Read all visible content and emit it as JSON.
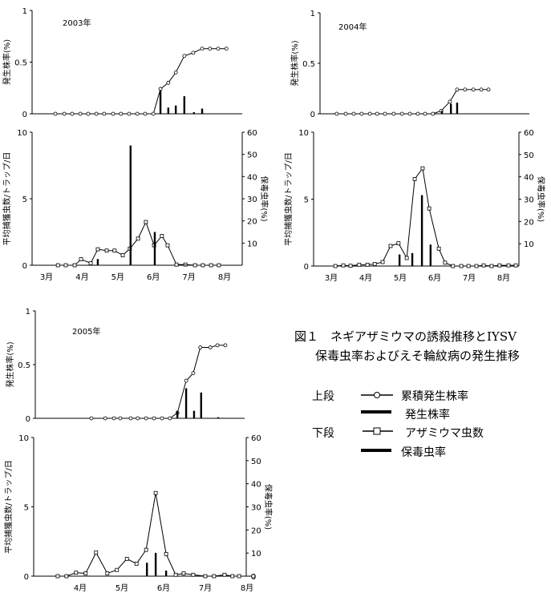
{
  "caption": {
    "line1": "図１　ネギアザミウマの誘殺推移とIYSV",
    "line2": "保毒虫率およびえそ輪紋病の発生推移"
  },
  "legend": {
    "upper_label": "上段",
    "lower_label": "下段",
    "items": [
      "累積発生株率",
      "発生株率",
      "アザミウマ虫数",
      "保毒虫率"
    ]
  },
  "chart_data": [
    {
      "type": "line",
      "year_label": "2003年",
      "ylabel": "発生株率(%)",
      "ylim": [
        0,
        1
      ],
      "yticks": [
        "0",
        "0.5",
        "1"
      ],
      "series": [
        {
          "name": "累積発生株率",
          "kind": "line-circle",
          "x": [
            3.75,
            4.0,
            4.22,
            4.45,
            4.67,
            4.9,
            5.12,
            5.37,
            5.59,
            5.82,
            6.05,
            6.27,
            6.5,
            6.7,
            6.92,
            7.13,
            7.37,
            7.62,
            7.87,
            8.09,
            8.32,
            8.55
          ],
          "y": [
            0,
            0,
            0,
            0,
            0,
            0,
            0,
            0,
            0,
            0,
            0,
            0,
            0,
            0.24,
            0.3,
            0.4,
            0.56,
            0.59,
            0.63,
            0.63,
            0.63,
            0.63
          ]
        },
        {
          "name": "発生株率",
          "kind": "bar",
          "x": [
            6.7,
            6.92,
            7.13,
            7.37,
            7.64,
            7.87
          ],
          "y": [
            0.23,
            0.06,
            0.08,
            0.17,
            0.015,
            0.05
          ]
        }
      ]
    },
    {
      "type": "line",
      "ylabel": "平均捕獲虫数/トラップ/日",
      "y2label": "保毒虫率(%)",
      "ylim": [
        0,
        10
      ],
      "y2lim": [
        0,
        60
      ],
      "yticks": [
        "0",
        "5",
        "10"
      ],
      "y2ticks": [
        "10",
        "20",
        "30",
        "40",
        "50",
        "60"
      ],
      "xticks": [
        "3月",
        "4月",
        "5月",
        "6月",
        "7月",
        "8月"
      ],
      "xtick_months": [
        3,
        4,
        5,
        6,
        7,
        8
      ],
      "series": [
        {
          "name": "アザミウマ虫数",
          "kind": "line-square",
          "x": [
            3.82,
            4.04,
            4.29,
            4.47,
            4.74,
            4.94,
            5.19,
            5.41,
            5.64,
            5.84,
            6.07,
            6.29,
            6.52,
            6.74,
            6.9,
            7.15,
            7.4,
            7.67,
            7.89,
            8.12,
            8.34
          ],
          "y": [
            0,
            0,
            0,
            0.45,
            0.15,
            1.2,
            1.1,
            1.1,
            0.75,
            1.25,
            2.0,
            3.25,
            1.5,
            2.2,
            1.5,
            0.05,
            0.05,
            0,
            0,
            0,
            0
          ]
        },
        {
          "name": "保毒虫率",
          "kind": "bar",
          "axis": "y2",
          "x": [
            4.94,
            5.86,
            6.54,
            7.4
          ],
          "y": [
            2.8,
            54,
            15,
            0.3
          ]
        }
      ]
    },
    {
      "type": "line",
      "year_label": "2004年",
      "ylabel": "発生株率(%)",
      "ylim": [
        0,
        1
      ],
      "yticks": [
        "0",
        "0.5",
        "1"
      ],
      "series": [
        {
          "name": "累積発生株率",
          "kind": "line-circle",
          "x": [
            3.66,
            3.92,
            4.15,
            4.38,
            4.62,
            4.83,
            5.06,
            5.31,
            5.55,
            5.78,
            6.01,
            6.22,
            6.45,
            6.69,
            6.94,
            7.15,
            7.38,
            7.62,
            7.85,
            8.06
          ],
          "y": [
            0,
            0,
            0,
            0,
            0,
            0,
            0,
            0,
            0,
            0,
            0,
            0,
            0,
            0.03,
            0.12,
            0.24,
            0.24,
            0.24,
            0.24,
            0.24
          ]
        },
        {
          "name": "発生株率",
          "kind": "bar",
          "x": [
            6.71,
            6.97,
            7.15
          ],
          "y": [
            0.03,
            0.1,
            0.11
          ]
        }
      ]
    },
    {
      "type": "line",
      "ylabel": "平均捕獲虫数/トラップ/日",
      "y2label": "保毒虫率(%)",
      "ylim": [
        0,
        10
      ],
      "y2lim": [
        0,
        60
      ],
      "yticks": [
        "0",
        "5",
        "10"
      ],
      "y2ticks": [
        "10",
        "20",
        "30",
        "40",
        "50",
        "60"
      ],
      "xticks": [
        "3月",
        "4月",
        "5月",
        "6月",
        "7月",
        "8月"
      ],
      "xtick_months": [
        3,
        4,
        5,
        6,
        7,
        8
      ],
      "series": [
        {
          "name": "アザミウマ虫数",
          "kind": "line-square",
          "x": [
            3.62,
            3.85,
            4.06,
            4.31,
            4.55,
            4.76,
            4.99,
            5.22,
            5.45,
            5.69,
            5.92,
            6.15,
            6.34,
            6.62,
            6.8,
            7.03,
            7.27,
            7.48,
            7.71,
            7.92,
            8.15,
            8.38,
            8.64,
            8.85
          ],
          "y": [
            0,
            0.05,
            0.02,
            0.1,
            0.1,
            0.15,
            0.3,
            1.5,
            1.7,
            0.6,
            6.5,
            7.3,
            4.3,
            1.3,
            0.25,
            0,
            0,
            0,
            0,
            0.05,
            0,
            0.05,
            0.05,
            0.05
          ]
        },
        {
          "name": "保毒虫率",
          "kind": "bar",
          "axis": "y2",
          "x": [
            5.48,
            5.85,
            6.13,
            6.38
          ],
          "y": [
            5.2,
            5.8,
            31.8,
            9.6
          ]
        }
      ]
    },
    {
      "type": "line",
      "year_label": "2005年",
      "ylabel": "発生株率(%)",
      "ylim": [
        0,
        1
      ],
      "yticks": [
        "0",
        "0.5",
        "1"
      ],
      "series": [
        {
          "name": "累積発生株率",
          "kind": "line-circle",
          "x": [
            4.77,
            5.1,
            5.31,
            5.46,
            5.71,
            5.88,
            6.08,
            6.27,
            6.46,
            6.65,
            6.83,
            7.04,
            7.21,
            7.38,
            7.62,
            7.79,
            7.98
          ],
          "y": [
            0,
            0,
            0,
            0,
            0,
            0,
            0,
            0,
            0,
            0,
            0.05,
            0.35,
            0.42,
            0.66,
            0.66,
            0.68,
            0.68
          ]
        },
        {
          "name": "発生株率",
          "kind": "bar",
          "x": [
            6.83,
            7.04,
            7.23,
            7.4,
            7.81
          ],
          "y": [
            0.07,
            0.28,
            0.07,
            0.24,
            0.01
          ]
        }
      ]
    },
    {
      "type": "line",
      "ylabel": "平均捕獲虫数/トラップ/日",
      "y2label": "保毒虫率(%)",
      "ylim": [
        0,
        10
      ],
      "y2lim": [
        0,
        60
      ],
      "yticks": [
        "0",
        "5",
        "10"
      ],
      "y2ticks": [
        "0",
        "10",
        "20",
        "30",
        "40",
        "50",
        "60"
      ],
      "xticks": [
        "4月",
        "5月",
        "6月",
        "7月",
        "8月"
      ],
      "xtick_months": [
        4,
        5,
        6,
        7,
        8
      ],
      "series": [
        {
          "name": "アザミウマ虫数",
          "kind": "line-square",
          "x": [
            3.96,
            4.17,
            4.4,
            4.63,
            4.88,
            5.15,
            5.38,
            5.62,
            5.85,
            6.08,
            6.31,
            6.56,
            6.79,
            6.98,
            7.21,
            7.5,
            7.71,
            7.96,
            8.15,
            8.31,
            8.65
          ],
          "y": [
            0,
            0,
            0.25,
            0.2,
            1.7,
            0.2,
            0.45,
            1.25,
            0.9,
            1.9,
            6.0,
            1.6,
            0.1,
            0.2,
            0.1,
            0,
            0,
            0.1,
            0,
            0,
            0
          ]
        },
        {
          "name": "保毒虫率",
          "kind": "bar",
          "axis": "y2",
          "x": [
            6.1,
            6.31,
            6.56
          ],
          "y": [
            5.8,
            10.1,
            2.4
          ]
        }
      ]
    }
  ]
}
